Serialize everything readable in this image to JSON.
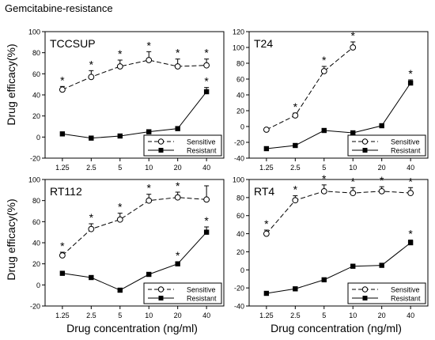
{
  "figure_title": "Gemcitabine-resistance",
  "shared_xlabel": "Drug concentration (ng/ml)",
  "shared_ylabel": "Drug efficacy(%)",
  "chart_data": [
    {
      "type": "line",
      "title": "TCCSUP",
      "categories": [
        "1.25",
        "2.5",
        "5",
        "10",
        "20",
        "40"
      ],
      "ylim": [
        -20,
        100
      ],
      "yticks": [
        -20,
        0,
        20,
        40,
        60,
        80,
        100
      ],
      "legend_position": "bottom-right",
      "series": [
        {
          "name": "Sensitive",
          "style": "dashed-open-circle",
          "values": [
            45,
            57,
            67,
            73,
            67,
            68
          ],
          "error": [
            3,
            6,
            6,
            8,
            7,
            6
          ],
          "significant": [
            true,
            true,
            true,
            true,
            true,
            true
          ]
        },
        {
          "name": "Resistant",
          "style": "solid-filled-square",
          "values": [
            3,
            -1,
            1,
            5,
            8,
            43
          ],
          "error": [
            0,
            0,
            0,
            0,
            0,
            4
          ],
          "significant": [
            false,
            false,
            false,
            false,
            false,
            true
          ]
        }
      ]
    },
    {
      "type": "line",
      "title": "T24",
      "categories": [
        "1.25",
        "2.5",
        "5",
        "10",
        "20",
        "40"
      ],
      "ylim": [
        -40,
        120
      ],
      "yticks": [
        -40,
        -20,
        0,
        20,
        40,
        60,
        80,
        100,
        120
      ],
      "legend_position": "bottom-right",
      "series": [
        {
          "name": "Sensitive",
          "style": "dashed-open-circle",
          "values": [
            -4,
            14,
            70,
            100,
            null,
            null
          ],
          "error": [
            0,
            3,
            6,
            7,
            0,
            0
          ],
          "significant": [
            false,
            true,
            true,
            true,
            false,
            false
          ]
        },
        {
          "name": "Resistant",
          "style": "solid-filled-square",
          "values": [
            -28,
            -24,
            -5,
            -8,
            1,
            55
          ],
          "error": [
            0,
            0,
            0,
            0,
            0,
            4
          ],
          "significant": [
            false,
            false,
            false,
            false,
            false,
            true
          ]
        }
      ]
    },
    {
      "type": "line",
      "title": "RT112",
      "categories": [
        "1.25",
        "2.5",
        "5",
        "10",
        "20",
        "40"
      ],
      "ylim": [
        -20,
        100
      ],
      "yticks": [
        -20,
        0,
        20,
        40,
        60,
        80,
        100
      ],
      "legend_position": "bottom-right",
      "series": [
        {
          "name": "Sensitive",
          "style": "dashed-open-circle",
          "values": [
            28,
            53,
            62,
            80,
            83,
            81
          ],
          "error": [
            3,
            5,
            6,
            6,
            5,
            13
          ],
          "significant": [
            true,
            true,
            true,
            true,
            true,
            false
          ]
        },
        {
          "name": "Resistant",
          "style": "solid-filled-square",
          "values": [
            11,
            7,
            -5,
            10,
            20,
            50
          ],
          "error": [
            0,
            0,
            0,
            0,
            2,
            5
          ],
          "significant": [
            false,
            false,
            false,
            false,
            true,
            true
          ]
        }
      ]
    },
    {
      "type": "line",
      "title": "RT4",
      "categories": [
        "1.25",
        "2.5",
        "5",
        "10",
        "20",
        "40"
      ],
      "ylim": [
        -40,
        100
      ],
      "yticks": [
        -40,
        -20,
        0,
        20,
        40,
        60,
        80,
        100
      ],
      "legend_position": "bottom-right",
      "series": [
        {
          "name": "Sensitive",
          "style": "dashed-open-circle",
          "values": [
            40,
            77,
            87,
            85,
            87,
            85
          ],
          "error": [
            4,
            5,
            7,
            6,
            5,
            6
          ],
          "significant": [
            true,
            true,
            true,
            true,
            true,
            true
          ]
        },
        {
          "name": "Resistant",
          "style": "solid-filled-square",
          "values": [
            -26,
            -21,
            -11,
            4,
            5,
            30
          ],
          "error": [
            0,
            0,
            0,
            0,
            0,
            3
          ],
          "significant": [
            false,
            false,
            false,
            false,
            false,
            true
          ]
        }
      ]
    }
  ]
}
